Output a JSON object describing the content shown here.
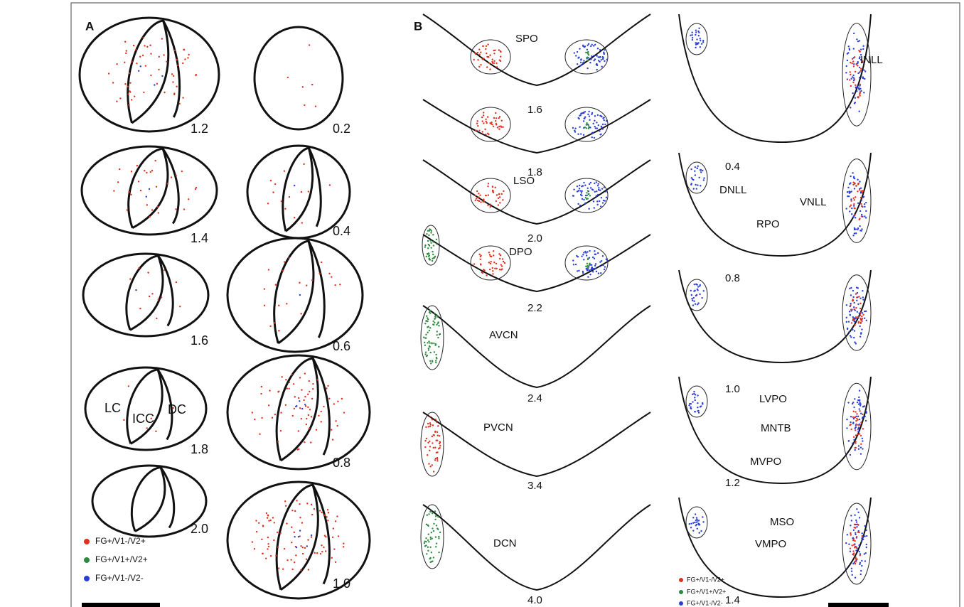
{
  "panel_a": {
    "label": "A",
    "sections_left": [
      "1.2",
      "1.4",
      "1.6",
      "1.8",
      "2.0"
    ],
    "sections_right": [
      "0.2",
      "0.4",
      "0.6",
      "0.8",
      "1.0"
    ],
    "regions": [
      "LC",
      "ICC",
      "DC"
    ],
    "legend": [
      "FG+/V1-/V2+",
      "FG+/V1+/V2+",
      "FG+/V1-/V2-"
    ]
  },
  "panel_b": {
    "label": "B",
    "sections_left": [
      "1.6",
      "1.8",
      "2.0",
      "2.2",
      "2.4",
      "3.4",
      "4.0"
    ],
    "sections_right": [
      "0.4",
      "0.8",
      "1.0",
      "1.2",
      "1.4"
    ],
    "regions": [
      "SPO",
      "LSO",
      "DPO",
      "AVCN",
      "PVCN",
      "DCN",
      "INLL",
      "DNLL",
      "VNLL",
      "RPO",
      "LVPO",
      "MNTB",
      "MVPO",
      "MSO",
      "VMPO"
    ],
    "legend": [
      "FG+/V1-/V2+",
      "FG+/V1+/V2+",
      "FG+/V1-/V2-"
    ]
  }
}
